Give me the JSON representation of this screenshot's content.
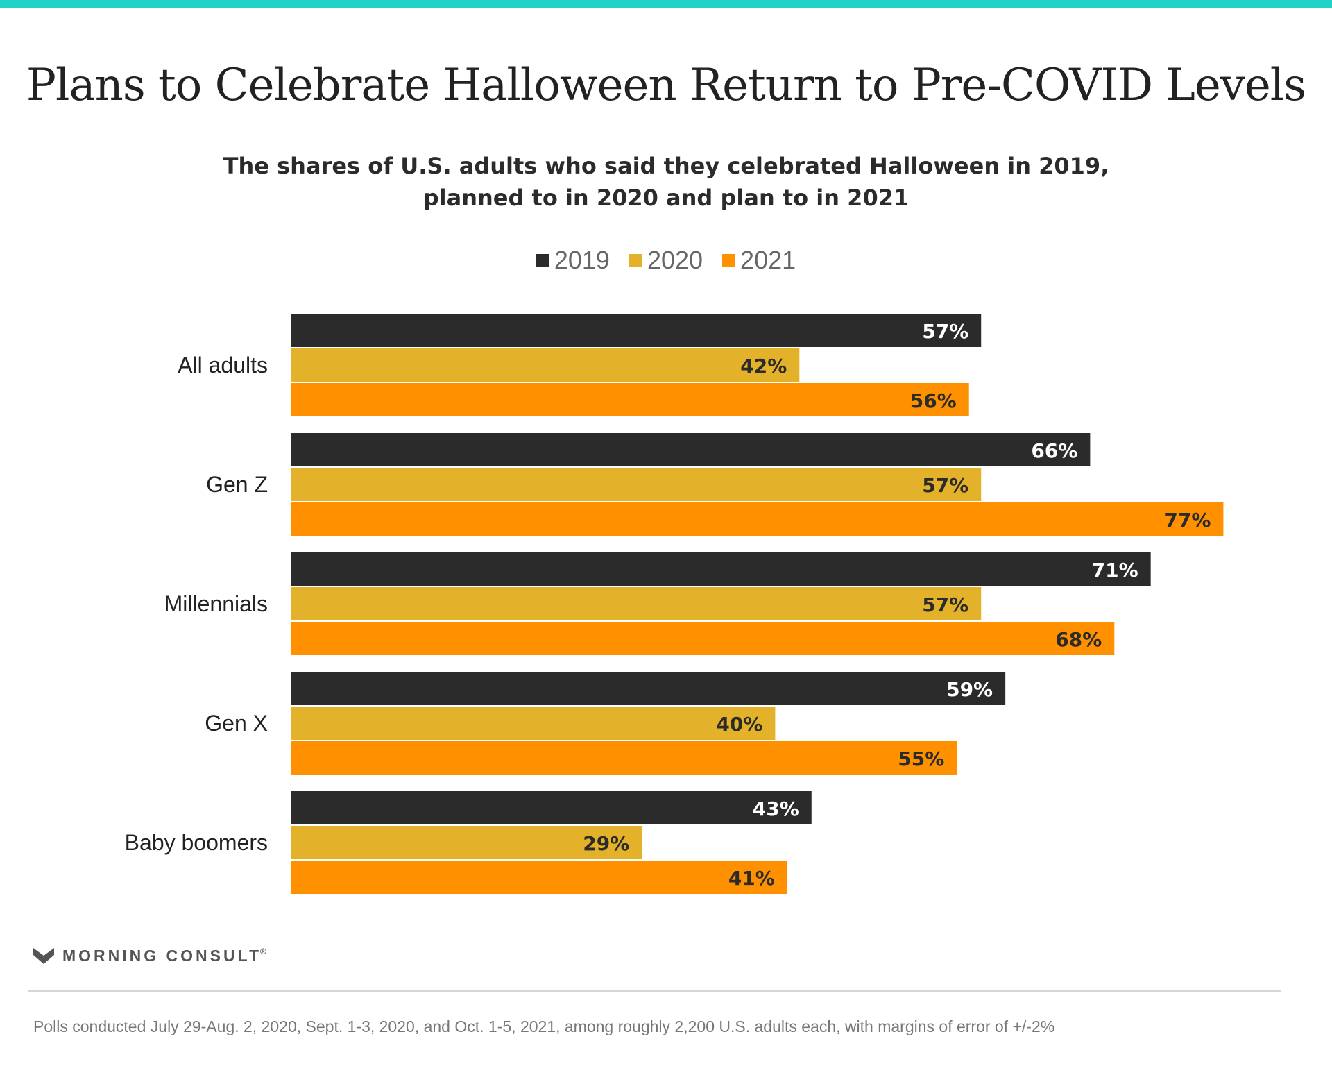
{
  "title": "Plans to Celebrate Halloween Return to Pre-COVID Levels",
  "subtitle_lines": [
    "The shares of U.S. adults who said they celebrated Halloween in 2019,",
    "planned to in 2020 and plan to in 2021"
  ],
  "colors": {
    "accent_bar": "#21d3c6",
    "s2019": "#2b2b2b",
    "s2020": "#e3b22a",
    "s2021": "#ff9100"
  },
  "chart_data": {
    "type": "bar",
    "orientation": "horizontal",
    "categories": [
      "All adults",
      "Gen Z",
      "Millennials",
      "Gen X",
      "Baby boomers"
    ],
    "series": [
      {
        "name": "2019",
        "color": "#2b2b2b",
        "label_color": "#ffffff",
        "values": [
          57,
          66,
          71,
          59,
          43
        ]
      },
      {
        "name": "2020",
        "color": "#e3b22a",
        "label_color": "#2b2b2b",
        "values": [
          42,
          57,
          57,
          40,
          29
        ]
      },
      {
        "name": "2021",
        "color": "#ff9100",
        "label_color": "#2b2b2b",
        "values": [
          56,
          77,
          68,
          55,
          41
        ]
      }
    ],
    "value_suffix": "%",
    "xlim": [
      0,
      100
    ],
    "legend_position": "top-center",
    "grid": false
  },
  "brand": {
    "name": "MORNING CONSULT",
    "mark": "®",
    "logo_icon": "chevron-m-icon"
  },
  "footnote": "Polls conducted July 29-Aug. 2, 2020, Sept. 1-3, 2020, and Oct. 1-5, 2021, among roughly 2,200 U.S. adults each, with margins of error of +/-2%"
}
